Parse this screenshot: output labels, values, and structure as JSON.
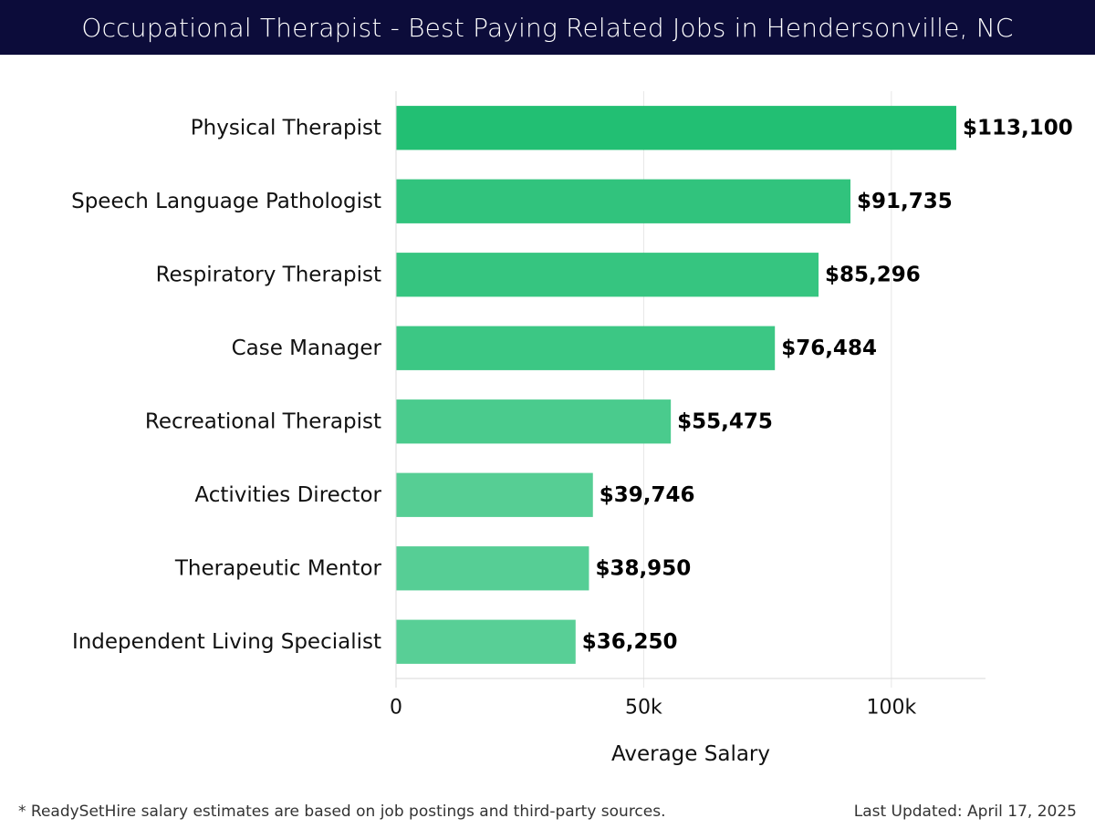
{
  "header": {
    "title": "Occupational Therapist - Best Paying Related Jobs in Hendersonville, NC"
  },
  "colors": {
    "title_bg": "#0c0c3a",
    "bar_dark": "#22bf73",
    "bar_light": "#58cf96",
    "grid": "#e6e6e6"
  },
  "chart_data": {
    "type": "bar",
    "orientation": "horizontal",
    "title": "Occupational Therapist - Best Paying Related Jobs in Hendersonville, NC",
    "categories": [
      "Physical Therapist",
      "Speech Language Pathologist",
      "Respiratory Therapist",
      "Case Manager",
      "Recreational Therapist",
      "Activities Director",
      "Therapeutic Mentor",
      "Independent Living Specialist"
    ],
    "values": [
      113100,
      91735,
      85296,
      76484,
      55475,
      39746,
      38950,
      36250
    ],
    "value_labels": [
      "$113,100",
      "$91,735",
      "$85,296",
      "$76,484",
      "$55,475",
      "$39,746",
      "$38,950",
      "$36,250"
    ],
    "xlabel": "Average Salary",
    "ylabel": "",
    "xlim": [
      0,
      119000
    ],
    "xticks": [
      0,
      50000,
      100000
    ],
    "xtick_labels": [
      "0",
      "50k",
      "100k"
    ],
    "grid": true
  },
  "footer": {
    "note": "* ReadySetHire salary estimates are based on job postings and third-party sources.",
    "updated": "Last Updated: April 17, 2025"
  }
}
